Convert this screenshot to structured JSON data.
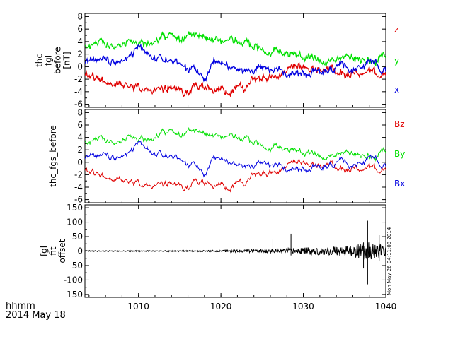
{
  "chart_data": [
    {
      "type": "line",
      "ylabel_lines": [
        "thc",
        "fgl",
        "before",
        "[nT]"
      ],
      "ylim": [
        -6.5,
        8.5
      ],
      "yticks": [
        -6,
        -4,
        -2,
        0,
        2,
        4,
        6,
        8
      ],
      "xlim": [
        1003.5,
        1040
      ],
      "series": [
        {
          "name": "z",
          "color": "#e00000",
          "x": [
            1003.5,
            1005,
            1007,
            1009,
            1011,
            1013,
            1015,
            1017,
            1019,
            1021,
            1022,
            1023,
            1024,
            1026,
            1028,
            1030,
            1032,
            1033.4,
            1034,
            1036,
            1038,
            1040
          ],
          "values": [
            -1.5,
            -2,
            -2.8,
            -2.5,
            -3.5,
            -3.8,
            -4,
            -3,
            -3.8,
            -4.2,
            -3,
            -3.8,
            -2,
            -1.6,
            -1,
            -0.6,
            -0.6,
            0,
            -1.1,
            -1,
            -1.3,
            -1.3
          ]
        },
        {
          "name": "y",
          "color": "#00e000",
          "x": [
            1003.5,
            1005,
            1007,
            1009,
            1011,
            1013,
            1015,
            1017,
            1019,
            1021,
            1023,
            1025,
            1027,
            1029,
            1031,
            1033,
            1035,
            1037,
            1039,
            1040
          ],
          "values": [
            3,
            4,
            3,
            4.5,
            3.5,
            5,
            4.5,
            4.5,
            4,
            4.5,
            3.5,
            3,
            2.5,
            1.5,
            1.5,
            1,
            1.5,
            1.5,
            1,
            2
          ]
        },
        {
          "name": "x",
          "color": "#0000e0",
          "x": [
            1003.5,
            1005,
            1007,
            1009,
            1010,
            1012,
            1014,
            1016,
            1018,
            1019,
            1020,
            1022,
            1024,
            1026,
            1028,
            1030,
            1033,
            1035,
            1037,
            1038,
            1040
          ],
          "values": [
            0.5,
            1,
            0.5,
            1,
            3,
            1.5,
            1,
            0,
            -2,
            1.5,
            0.5,
            -0.5,
            -0.5,
            -0.8,
            -1,
            -0.6,
            -0.6,
            -0.2,
            -0.6,
            0.3,
            -0.3
          ]
        }
      ]
    },
    {
      "type": "line",
      "ylabel": "thc_fgs_before",
      "ylim": [
        -6.5,
        8.5
      ],
      "yticks": [
        -6,
        -4,
        -2,
        0,
        2,
        4,
        6,
        8
      ],
      "xlim": [
        1003.5,
        1040
      ],
      "series": [
        {
          "name": "Bz",
          "color": "#e00000",
          "x": [
            1003.5,
            1005,
            1007,
            1009,
            1011,
            1013,
            1015,
            1017,
            1019,
            1021,
            1022,
            1023,
            1024,
            1026,
            1028,
            1030,
            1032,
            1033.4,
            1034,
            1036,
            1038,
            1040
          ],
          "values": [
            -1.5,
            -2,
            -2.8,
            -2.5,
            -3.5,
            -3.8,
            -4,
            -3,
            -3.8,
            -4.2,
            -3,
            -3.8,
            -2,
            -1.6,
            -1,
            -0.6,
            -0.6,
            0,
            -1.1,
            -1,
            -1.3,
            -1.3
          ]
        },
        {
          "name": "By",
          "color": "#00e000",
          "x": [
            1003.5,
            1005,
            1007,
            1009,
            1011,
            1013,
            1015,
            1017,
            1019,
            1021,
            1023,
            1025,
            1027,
            1029,
            1031,
            1033,
            1035,
            1037,
            1039,
            1040
          ],
          "values": [
            3,
            4,
            3,
            4.5,
            3.5,
            5,
            4.5,
            4.5,
            4,
            4.5,
            3.5,
            3,
            2.5,
            1.5,
            1.5,
            1,
            1.5,
            1.5,
            1,
            2
          ]
        },
        {
          "name": "Bx",
          "color": "#0000e0",
          "x": [
            1003.5,
            1005,
            1007,
            1009,
            1010,
            1012,
            1014,
            1016,
            1018,
            1019,
            1020,
            1022,
            1024,
            1026,
            1028,
            1030,
            1033,
            1035,
            1037,
            1038,
            1040
          ],
          "values": [
            0.5,
            1,
            0.5,
            1,
            3,
            1.5,
            1,
            0,
            -2,
            1.5,
            0.5,
            -0.5,
            -0.5,
            -0.8,
            -1,
            -0.6,
            -0.6,
            -0.2,
            -0.6,
            0.3,
            -0.3
          ]
        }
      ]
    },
    {
      "type": "line",
      "ylabel_lines": [
        "fgl",
        "fit",
        "offset"
      ],
      "ylim": [
        -160,
        160
      ],
      "yticks": [
        -150,
        -100,
        -50,
        0,
        50,
        100,
        150
      ],
      "xlim": [
        1003.5,
        1040
      ],
      "xticks": [
        1010,
        1020,
        1030,
        1040
      ],
      "series": [
        {
          "color": "#000000",
          "x": [
            1003.5,
            1017,
            1023,
            1026,
            1028,
            1030,
            1033,
            1035,
            1036,
            1037,
            1038,
            1039,
            1040
          ],
          "values": [
            0,
            0,
            5,
            10,
            15,
            20,
            25,
            30,
            40,
            50,
            60,
            45,
            35
          ]
        }
      ],
      "spikes": [
        {
          "x": 1026.3,
          "values": [
            40,
            -10
          ]
        },
        {
          "x": 1028.5,
          "values": [
            60,
            -15
          ]
        },
        {
          "x": 1037.3,
          "values": [
            30,
            -60
          ]
        },
        {
          "x": 1037.8,
          "values": [
            105,
            -115
          ]
        },
        {
          "x": 1039.2,
          "values": [
            55,
            -35
          ]
        }
      ]
    }
  ],
  "footer": {
    "time_label": "hhmm",
    "date_label": "2014 May 18",
    "timestamp": "Mon May 26 04:11:08 2014"
  },
  "colors": {
    "z": "#e00000",
    "y": "#00e000",
    "x": "#0000e0",
    "ink": "#000000"
  }
}
